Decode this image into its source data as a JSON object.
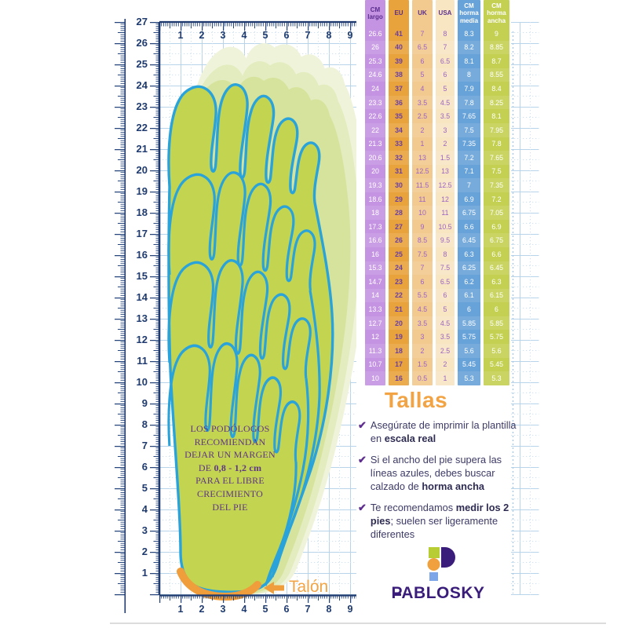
{
  "colors": {
    "navy": "#1e3a6e",
    "grid_blue": "#b7d4eb",
    "grid_blue_light": "#cde1f2",
    "outline_blue": "#2aa3da",
    "foot_green": "#c3d451",
    "pale_green_1": "#eff3da",
    "pale_green_2": "#e2ecbe",
    "pale_green_3": "#d6e39c",
    "accent_orange": "#f2a444",
    "arrow_orange": "#f09d3b",
    "note_purple": "#5e3585",
    "check_purple": "#5e2f8e",
    "tip_text": "#3c3a66",
    "tip_bold": "#2e2c52",
    "brand_purple": "#3a1d7a"
  },
  "rulers": {
    "vertical_numbers": [
      "27",
      "26",
      "25",
      "24",
      "23",
      "22",
      "21",
      "20",
      "19",
      "18",
      "17",
      "16",
      "15",
      "14",
      "13",
      "12",
      "11",
      "10",
      "9",
      "8",
      "7",
      "6",
      "5",
      "4",
      "3",
      "2",
      "1"
    ],
    "horizontal_numbers": [
      "1",
      "2",
      "3",
      "4",
      "5",
      "6",
      "7",
      "8",
      "9"
    ]
  },
  "foot": {
    "note": {
      "l1": "LOS PODÓLOGOS",
      "l2": "RECOMIENDAN",
      "l3": "DEJAR UN MARGEN",
      "l4_pre": "DE ",
      "l4_bold": "0,8 - 1,2 cm",
      "l5": "PARA EL LIBRE",
      "l6": "CRECIMIENTO",
      "l7": "DEL PIE"
    },
    "heel_label": "Talón"
  },
  "size_table": {
    "columns": [
      {
        "label": "CM largo",
        "bg": "#c493e2",
        "header_color": "#5b2e8e",
        "cell_color": "#ffffff",
        "bold": false
      },
      {
        "label": "EU",
        "bg": "#e8a33c",
        "header_color": "#5b2e8e",
        "cell_color": "#6b3fa0",
        "bold": true
      },
      {
        "label": "UK",
        "bg": "#f2c98e",
        "header_color": "#5b2e8e",
        "cell_color": "#9c62c4",
        "bold": false
      },
      {
        "label": "USA",
        "bg": "#f8e6c3",
        "header_color": "#5b2e8e",
        "cell_color": "#9c62c4",
        "bold": false
      },
      {
        "label": "CM horma media",
        "bg": "#67a2d9",
        "header_color": "#ffffff",
        "cell_color": "#ffffff",
        "bold": false
      },
      {
        "label": "CM horma ancha",
        "bg": "#c3d051",
        "header_color": "#ffffff",
        "cell_color": "#ffffff",
        "bold": false
      }
    ],
    "rows": [
      [
        "26.6",
        "41",
        "7",
        "8",
        "8.3",
        "9"
      ],
      [
        "26",
        "40",
        "6.5",
        "7",
        "8.2",
        "8.85"
      ],
      [
        "25.3",
        "39",
        "6",
        "6.5",
        "8.1",
        "8.7"
      ],
      [
        "24.6",
        "38",
        "5",
        "6",
        "8",
        "8.55"
      ],
      [
        "24",
        "37",
        "4",
        "5",
        "7.9",
        "8.4"
      ],
      [
        "23.3",
        "36",
        "3.5",
        "4.5",
        "7.8",
        "8.25"
      ],
      [
        "22.6",
        "35",
        "2.5",
        "3.5",
        "7.65",
        "8.1"
      ],
      [
        "22",
        "34",
        "2",
        "3",
        "7.5",
        "7.95"
      ],
      [
        "21.3",
        "33",
        "1",
        "2",
        "7.35",
        "7.8"
      ],
      [
        "20.6",
        "32",
        "13",
        "1.5",
        "7.2",
        "7.65"
      ],
      [
        "20",
        "31",
        "12.5",
        "13",
        "7.1",
        "7.5"
      ],
      [
        "19.3",
        "30",
        "11.5",
        "12.5",
        "7",
        "7.35"
      ],
      [
        "18.6",
        "29",
        "11",
        "12",
        "6.9",
        "7.2"
      ],
      [
        "18",
        "28",
        "10",
        "11",
        "6.75",
        "7.05"
      ],
      [
        "17.3",
        "27",
        "9",
        "10.5",
        "6.6",
        "6.9"
      ],
      [
        "16.6",
        "26",
        "8.5",
        "9.5",
        "6.45",
        "6.75"
      ],
      [
        "16",
        "25",
        "7.5",
        "8",
        "6.3",
        "6.6"
      ],
      [
        "15.3",
        "24",
        "7",
        "7.5",
        "6.25",
        "6.45"
      ],
      [
        "14.7",
        "23",
        "6",
        "6.5",
        "6.2",
        "6.3"
      ],
      [
        "14",
        "22",
        "5.5",
        "6",
        "6.1",
        "6.15"
      ],
      [
        "13.3",
        "21",
        "4.5",
        "5",
        "6",
        "6"
      ],
      [
        "12.7",
        "20",
        "3.5",
        "4.5",
        "5.85",
        "5.85"
      ],
      [
        "12",
        "19",
        "3",
        "3.5",
        "5.75",
        "5.75"
      ],
      [
        "11.3",
        "18",
        "2",
        "2.5",
        "5.6",
        "5.6"
      ],
      [
        "10.7",
        "17",
        "1.5",
        "2",
        "5.45",
        "5.45"
      ],
      [
        "10",
        "16",
        "0.5",
        "1",
        "5.3",
        "5.3"
      ]
    ]
  },
  "tallas": {
    "title": "Tallas",
    "tips": [
      {
        "pre": "Asegúrate de imprimir la plantilla en ",
        "bold": "escala real",
        "post": ""
      },
      {
        "pre": "Si el ancho del pie supera las líneas azules, debes buscar calzado de ",
        "bold": "horma ancha",
        "post": ""
      },
      {
        "pre": "Te recomendamos ",
        "bold": "medir los 2 pies",
        "post": "; suelen ser ligeramente diferentes"
      }
    ]
  },
  "brand": {
    "name": "PABLOSKY"
  }
}
